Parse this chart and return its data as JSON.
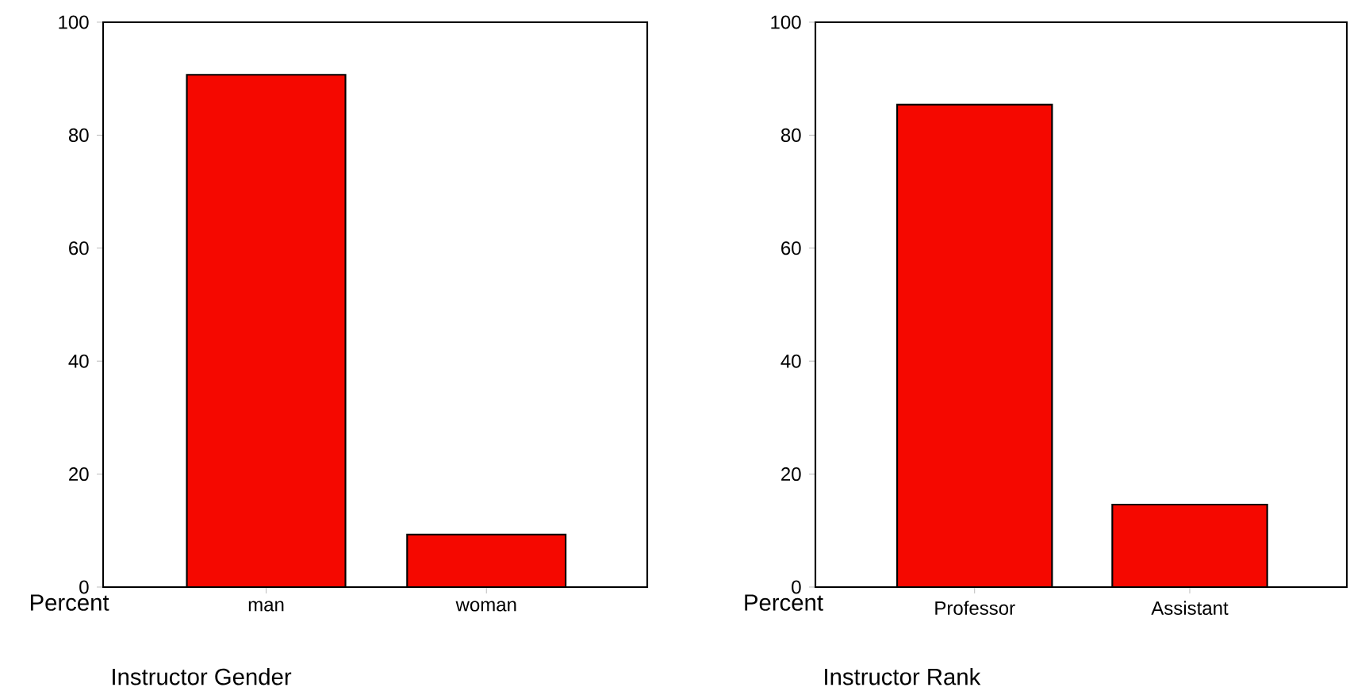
{
  "chart_data": [
    {
      "type": "bar",
      "xlabel": "Instructor Gender",
      "ylabel": "Percent",
      "categories": [
        "man",
        "woman"
      ],
      "values": [
        90.7,
        9.3
      ],
      "color": "#f50800",
      "ylim": [
        0,
        100
      ],
      "yticks": [
        0,
        20,
        40,
        60,
        80,
        100
      ]
    },
    {
      "type": "bar",
      "xlabel": "Instructor Rank",
      "ylabel": "Percent",
      "categories": [
        "Professor",
        "Assistant"
      ],
      "values": [
        85.4,
        14.6
      ],
      "color": "#f50800",
      "ylim": [
        0,
        100
      ],
      "yticks": [
        0,
        20,
        40,
        60,
        80,
        100
      ]
    }
  ]
}
